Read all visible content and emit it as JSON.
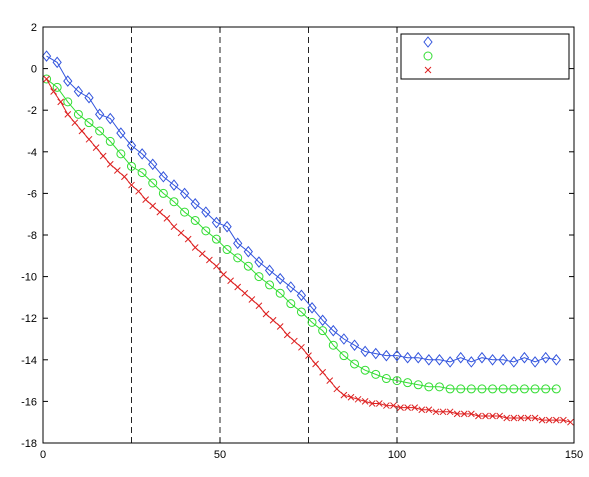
{
  "chart_data": {
    "type": "line",
    "title": "",
    "xlabel": "",
    "ylabel": "",
    "xlim": [
      0,
      150
    ],
    "ylim": [
      -18,
      2
    ],
    "x_ticks": [
      0,
      50,
      100,
      150
    ],
    "y_ticks": [
      2,
      0,
      -2,
      -4,
      -6,
      -8,
      -10,
      -12,
      -14,
      -16,
      -18
    ],
    "x_tick_labels": [
      "0",
      "50",
      "100",
      "150"
    ],
    "y_tick_labels": [
      "2",
      "0",
      "-2",
      "-4",
      "-6",
      "-8",
      "-10",
      "-12",
      "-14",
      "-16",
      "-18"
    ],
    "vertical_reference_lines": [
      25,
      50,
      75,
      100
    ],
    "grid": false,
    "legend": {
      "position": "top-right",
      "entries": [
        "",
        "",
        ""
      ]
    },
    "series": [
      {
        "marker": "diamond",
        "color": "#3355dd",
        "x": [
          1,
          4,
          7,
          10,
          13,
          16,
          19,
          22,
          25,
          28,
          31,
          34,
          37,
          40,
          43,
          46,
          49,
          52,
          55,
          58,
          61,
          64,
          67,
          70,
          73,
          76,
          79,
          82,
          85,
          88,
          91,
          94,
          97,
          100,
          103,
          106,
          109,
          112,
          115,
          118,
          121,
          124,
          127,
          130,
          133,
          136,
          139,
          142,
          145
        ],
        "y": [
          0.6,
          0.3,
          -0.6,
          -1.1,
          -1.4,
          -2.2,
          -2.4,
          -3.1,
          -3.7,
          -4.1,
          -4.6,
          -5.2,
          -5.6,
          -6.0,
          -6.5,
          -6.9,
          -7.4,
          -7.6,
          -8.4,
          -8.8,
          -9.3,
          -9.7,
          -10.1,
          -10.5,
          -10.9,
          -11.5,
          -12.1,
          -12.6,
          -13.0,
          -13.3,
          -13.6,
          -13.7,
          -13.8,
          -13.8,
          -13.9,
          -13.9,
          -14.0,
          -14.0,
          -14.1,
          -13.9,
          -14.1,
          -13.9,
          -14.0,
          -14.0,
          -14.1,
          -13.9,
          -14.1,
          -13.9,
          -14.0
        ]
      },
      {
        "marker": "circle",
        "color": "#33dd33",
        "x": [
          1,
          4,
          7,
          10,
          13,
          16,
          19,
          22,
          25,
          28,
          31,
          34,
          37,
          40,
          43,
          46,
          49,
          52,
          55,
          58,
          61,
          64,
          67,
          70,
          73,
          76,
          79,
          82,
          85,
          88,
          91,
          94,
          97,
          100,
          103,
          106,
          109,
          112,
          115,
          118,
          121,
          124,
          127,
          130,
          133,
          136,
          139,
          142,
          145
        ],
        "y": [
          -0.5,
          -0.9,
          -1.6,
          -2.2,
          -2.6,
          -3.0,
          -3.5,
          -4.1,
          -4.7,
          -5.0,
          -5.5,
          -6.0,
          -6.4,
          -6.9,
          -7.3,
          -7.8,
          -8.2,
          -8.7,
          -9.1,
          -9.5,
          -10.0,
          -10.4,
          -10.8,
          -11.3,
          -11.7,
          -12.2,
          -12.6,
          -13.3,
          -13.8,
          -14.2,
          -14.5,
          -14.7,
          -14.9,
          -15.0,
          -15.1,
          -15.2,
          -15.3,
          -15.3,
          -15.4,
          -15.4,
          -15.4,
          -15.4,
          -15.4,
          -15.4,
          -15.4,
          -15.4,
          -15.4,
          -15.4,
          -15.4
        ]
      },
      {
        "marker": "x",
        "color": "#dd2222",
        "x": [
          1,
          3,
          5,
          7,
          9,
          11,
          13,
          15,
          17,
          19,
          21,
          23,
          25,
          27,
          29,
          31,
          33,
          35,
          37,
          39,
          41,
          43,
          45,
          47,
          49,
          51,
          53,
          55,
          57,
          59,
          61,
          63,
          65,
          67,
          69,
          71,
          73,
          75,
          77,
          79,
          81,
          83,
          85,
          87,
          89,
          91,
          93,
          95,
          97,
          99,
          101,
          103,
          105,
          107,
          109,
          111,
          113,
          115,
          117,
          119,
          121,
          123,
          125,
          127,
          129,
          131,
          133,
          135,
          137,
          139,
          141,
          143,
          145,
          147,
          149
        ],
        "y": [
          -0.5,
          -1.1,
          -1.6,
          -2.2,
          -2.6,
          -3.0,
          -3.4,
          -3.8,
          -4.2,
          -4.6,
          -4.9,
          -5.2,
          -5.6,
          -5.9,
          -6.3,
          -6.6,
          -6.9,
          -7.2,
          -7.6,
          -7.9,
          -8.2,
          -8.6,
          -8.9,
          -9.2,
          -9.5,
          -9.9,
          -10.2,
          -10.5,
          -10.8,
          -11.1,
          -11.4,
          -11.8,
          -12.1,
          -12.4,
          -12.8,
          -13.1,
          -13.4,
          -13.8,
          -14.2,
          -14.6,
          -15.0,
          -15.4,
          -15.7,
          -15.8,
          -15.9,
          -16.0,
          -16.1,
          -16.1,
          -16.2,
          -16.2,
          -16.3,
          -16.3,
          -16.3,
          -16.4,
          -16.4,
          -16.5,
          -16.5,
          -16.5,
          -16.6,
          -16.6,
          -16.6,
          -16.7,
          -16.7,
          -16.7,
          -16.7,
          -16.8,
          -16.8,
          -16.8,
          -16.8,
          -16.8,
          -16.9,
          -16.9,
          -16.9,
          -16.9,
          -17.0
        ]
      }
    ]
  }
}
